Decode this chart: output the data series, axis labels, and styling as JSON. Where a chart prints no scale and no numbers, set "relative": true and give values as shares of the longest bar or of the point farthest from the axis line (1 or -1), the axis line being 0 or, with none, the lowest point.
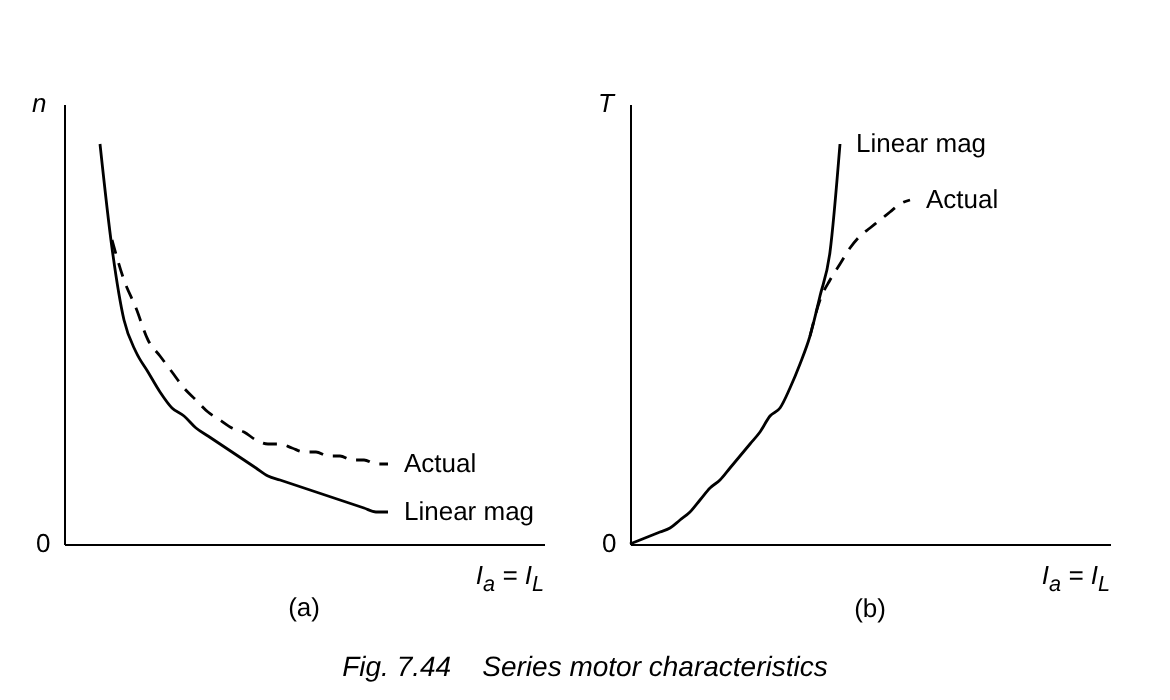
{
  "chart_data": [
    {
      "type": "line",
      "relative": true,
      "title": "(a)",
      "xlabel": "I$_{a}$ = I$_{L}$",
      "ylabel": "n",
      "legend": false,
      "grid": false,
      "marker": "none",
      "annotations": [
        "0",
        "Fig. 7.44    Series motor characteristics"
      ],
      "categories": [
        null,
        null,
        null,
        null,
        null,
        null,
        null,
        null,
        null,
        null,
        null,
        null,
        null,
        null,
        null,
        null,
        null,
        null,
        null,
        null,
        null,
        null,
        null,
        null,
        null,
        null,
        null,
        null,
        null,
        null,
        null,
        null,
        null,
        null,
        null,
        null,
        null,
        null,
        null,
        null,
        null
      ],
      "series": [
        {
          "name": "Actual",
          "color": "#000000",
          "line_style": "dashed",
          "values": [
            null,
            null,
            null,
            null,
            0.76,
            0.66,
            0.59,
            0.51,
            0.47,
            0.43,
            0.39,
            0.36,
            0.33,
            0.31,
            0.29,
            0.28,
            0.26,
            0.25,
            0.25,
            0.24,
            0.23,
            0.23,
            0.22,
            0.22,
            0.21,
            0.21,
            0.2,
            0.2,
            null,
            null,
            null,
            null,
            null,
            null,
            null,
            null,
            null,
            null,
            null,
            null,
            null
          ]
        },
        {
          "name": "Linear mag",
          "color": "#000000",
          "line_style": "solid",
          "values": [
            null,
            null,
            null,
            1,
            0.74,
            0.56,
            0.48,
            0.43,
            0.38,
            0.34,
            0.32,
            0.29,
            0.27,
            0.25,
            0.23,
            0.21,
            0.19,
            0.17,
            0.16,
            0.15,
            0.14,
            0.13,
            0.12,
            0.11,
            0.1,
            0.09,
            0.08,
            0.08,
            null,
            null,
            null,
            null,
            null,
            null,
            null,
            null,
            null,
            null,
            null,
            null,
            null
          ]
        }
      ]
    },
    {
      "type": "line",
      "relative": true,
      "title": "(b)",
      "xlabel": "I$_{a}$ = I$_{L}$",
      "ylabel": "T",
      "legend": false,
      "grid": false,
      "marker": "none",
      "annotations": [
        "0"
      ],
      "categories": [
        null,
        null,
        null,
        null,
        null,
        null,
        null,
        null,
        null,
        null,
        null,
        null,
        null,
        null,
        null,
        null,
        null,
        null,
        null,
        null,
        null,
        null,
        null,
        null,
        null,
        null,
        null,
        null,
        null,
        null,
        null,
        null,
        null,
        null,
        null,
        null,
        null,
        null,
        null,
        null,
        null,
        null,
        null,
        null,
        null,
        null,
        null,
        null,
        null
      ],
      "series": [
        {
          "name": "Linear mag",
          "color": "#000000",
          "line_style": "solid",
          "values": [
            0,
            0.01,
            0.02,
            0.03,
            0.04,
            0.06,
            0.08,
            0.11,
            0.14,
            0.16,
            0.19,
            0.22,
            0.25,
            0.28,
            0.32,
            0.34,
            0.39,
            0.45,
            0.52,
            0.62,
            0.73,
            1,
            null,
            null,
            null,
            null,
            null,
            null,
            null,
            null,
            null,
            null,
            null,
            null,
            null,
            null,
            null,
            null,
            null,
            null,
            null,
            null,
            null,
            null,
            null,
            null,
            null,
            null,
            null
          ]
        },
        {
          "name": "Actual",
          "color": "#000000",
          "line_style": "dashed",
          "values": [
            null,
            null,
            null,
            null,
            null,
            null,
            null,
            null,
            null,
            null,
            null,
            null,
            null,
            null,
            null,
            null,
            null,
            null,
            0.52,
            0.61,
            0.66,
            0.7,
            0.74,
            0.77,
            0.79,
            0.81,
            0.83,
            0.85,
            0.86,
            null,
            null,
            null,
            null,
            null,
            null,
            null,
            null,
            null,
            null,
            null,
            null,
            null,
            null,
            null,
            null,
            null,
            null,
            null,
            null
          ]
        }
      ]
    }
  ]
}
